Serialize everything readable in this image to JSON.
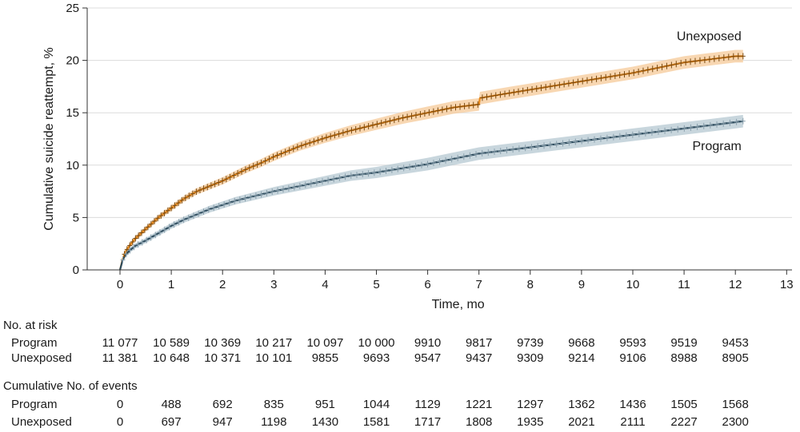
{
  "chart_data": {
    "type": "line",
    "title": "",
    "xlabel": "Time, mo",
    "ylabel": "Cumulative suicide reattempt, %",
    "xlim": [
      0,
      13
    ],
    "ylim": [
      0,
      25
    ],
    "xticks": [
      0,
      1,
      2,
      3,
      4,
      5,
      6,
      7,
      8,
      9,
      10,
      11,
      12,
      13
    ],
    "yticks": [
      0,
      5,
      10,
      15,
      20,
      25
    ],
    "grid": "horizontal",
    "series": [
      {
        "name": "Unexposed",
        "color": "#e8891c",
        "band_color": "#f6c998",
        "x": [
          0,
          0.05,
          0.1,
          0.2,
          0.3,
          0.5,
          0.75,
          1,
          1.25,
          1.5,
          1.75,
          2,
          2.25,
          2.5,
          2.75,
          3,
          3.25,
          3.5,
          3.75,
          4,
          4.5,
          5,
          5.5,
          6,
          6.5,
          7,
          7.02,
          7.5,
          8,
          8.5,
          9,
          9.5,
          10,
          10.5,
          11,
          11.5,
          12,
          12.15
        ],
        "y": [
          0,
          1.0,
          1.7,
          2.4,
          3.0,
          3.9,
          5.0,
          5.9,
          6.8,
          7.5,
          8.0,
          8.5,
          9.1,
          9.7,
          10.2,
          10.8,
          11.3,
          11.8,
          12.2,
          12.6,
          13.3,
          13.9,
          14.5,
          15.0,
          15.5,
          15.8,
          16.4,
          16.8,
          17.2,
          17.6,
          18.0,
          18.4,
          18.8,
          19.3,
          19.8,
          20.1,
          20.4,
          20.4
        ],
        "ci_halfwidth": 0.6
      },
      {
        "name": "Program",
        "color": "#2c4a5c",
        "band_color": "#b5c8d2",
        "x": [
          0,
          0.05,
          0.1,
          0.2,
          0.3,
          0.5,
          0.75,
          1,
          1.25,
          1.5,
          1.75,
          2,
          2.25,
          2.5,
          2.75,
          3,
          3.5,
          4,
          4.5,
          5,
          5.5,
          6,
          6.5,
          7,
          7.5,
          8,
          8.5,
          9,
          9.5,
          10,
          10.5,
          11,
          11.5,
          12,
          12.15
        ],
        "y": [
          0,
          0.9,
          1.4,
          1.9,
          2.3,
          2.8,
          3.5,
          4.2,
          4.8,
          5.3,
          5.8,
          6.2,
          6.6,
          6.9,
          7.2,
          7.5,
          8.0,
          8.5,
          9.0,
          9.3,
          9.7,
          10.1,
          10.6,
          11.1,
          11.4,
          11.7,
          12.0,
          12.3,
          12.6,
          12.9,
          13.2,
          13.5,
          13.8,
          14.1,
          14.2
        ],
        "ci_halfwidth": 0.6
      }
    ],
    "series_labels": [
      {
        "series": "Unexposed",
        "text": "Unexposed",
        "anchor_x": 12.15,
        "anchor_y": 22.3
      },
      {
        "series": "Program",
        "text": "Program",
        "anchor_x": 12.15,
        "anchor_y": 11.8
      }
    ],
    "tables": [
      {
        "title": "No. at risk",
        "rows": [
          {
            "label": "Program",
            "values": [
              "11 077",
              "10 589",
              "10 369",
              "10 217",
              "10 097",
              "10 000",
              "9910",
              "9817",
              "9739",
              "9668",
              "9593",
              "9519",
              "9453"
            ]
          },
          {
            "label": "Unexposed",
            "values": [
              "11 381",
              "10 648",
              "10 371",
              "10 101",
              "9855",
              "9693",
              "9547",
              "9437",
              "9309",
              "9214",
              "9106",
              "8988",
              "8905"
            ]
          }
        ]
      },
      {
        "title": "Cumulative No. of events",
        "rows": [
          {
            "label": "Program",
            "values": [
              "0",
              "488",
              "692",
              "835",
              "951",
              "1044",
              "1129",
              "1221",
              "1297",
              "1362",
              "1436",
              "1505",
              "1568"
            ]
          },
          {
            "label": "Unexposed",
            "values": [
              "0",
              "697",
              "947",
              "1198",
              "1430",
              "1581",
              "1717",
              "1808",
              "1935",
              "2021",
              "2111",
              "2227",
              "2300"
            ]
          }
        ]
      }
    ]
  }
}
